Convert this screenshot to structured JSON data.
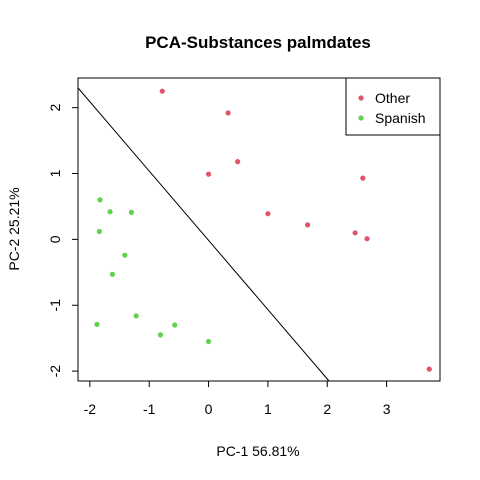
{
  "chart_data": {
    "type": "scatter",
    "title": "PCA-Substances palmdates",
    "xlabel": "PC-1 56.81%",
    "ylabel": "PC-2  25.21%",
    "xlim": [
      -2.2,
      3.9
    ],
    "ylim": [
      -2.15,
      2.45
    ],
    "xticks": [
      -2,
      -1,
      0,
      1,
      2,
      3
    ],
    "yticks": [
      -2,
      -1,
      0,
      1,
      2
    ],
    "xtick_labels": [
      "-2",
      "-1",
      "0",
      "1",
      "2",
      "3"
    ],
    "ytick_labels": [
      "-2",
      "-1",
      "0",
      "1",
      "2"
    ],
    "grid": false,
    "legend_position": "top-right",
    "series": [
      {
        "name": "Other",
        "color": "#DF536B",
        "points": [
          {
            "x": -0.78,
            "y": 2.25
          },
          {
            "x": 0.33,
            "y": 1.92
          },
          {
            "x": 0.49,
            "y": 1.18
          },
          {
            "x": 0.0,
            "y": 0.99
          },
          {
            "x": 1.0,
            "y": 0.39
          },
          {
            "x": 1.67,
            "y": 0.22
          },
          {
            "x": 2.6,
            "y": 0.93
          },
          {
            "x": 2.47,
            "y": 0.1
          },
          {
            "x": 2.67,
            "y": 0.01
          },
          {
            "x": 3.72,
            "y": -1.97
          }
        ]
      },
      {
        "name": "Spanish",
        "color": "#61D04F",
        "points": [
          {
            "x": -1.83,
            "y": 0.6
          },
          {
            "x": -1.66,
            "y": 0.42
          },
          {
            "x": -1.3,
            "y": 0.41
          },
          {
            "x": -1.84,
            "y": 0.12
          },
          {
            "x": -1.41,
            "y": -0.24
          },
          {
            "x": -1.62,
            "y": -0.53
          },
          {
            "x": -1.22,
            "y": -1.16
          },
          {
            "x": -1.88,
            "y": -1.29
          },
          {
            "x": -0.57,
            "y": -1.3
          },
          {
            "x": -0.81,
            "y": -1.45
          },
          {
            "x": 0.0,
            "y": -1.55
          }
        ]
      }
    ],
    "lines": [
      {
        "x1": -2.2,
        "y1": 2.3,
        "x2": 2.03,
        "y2": -2.15,
        "color": "#000000"
      }
    ]
  }
}
